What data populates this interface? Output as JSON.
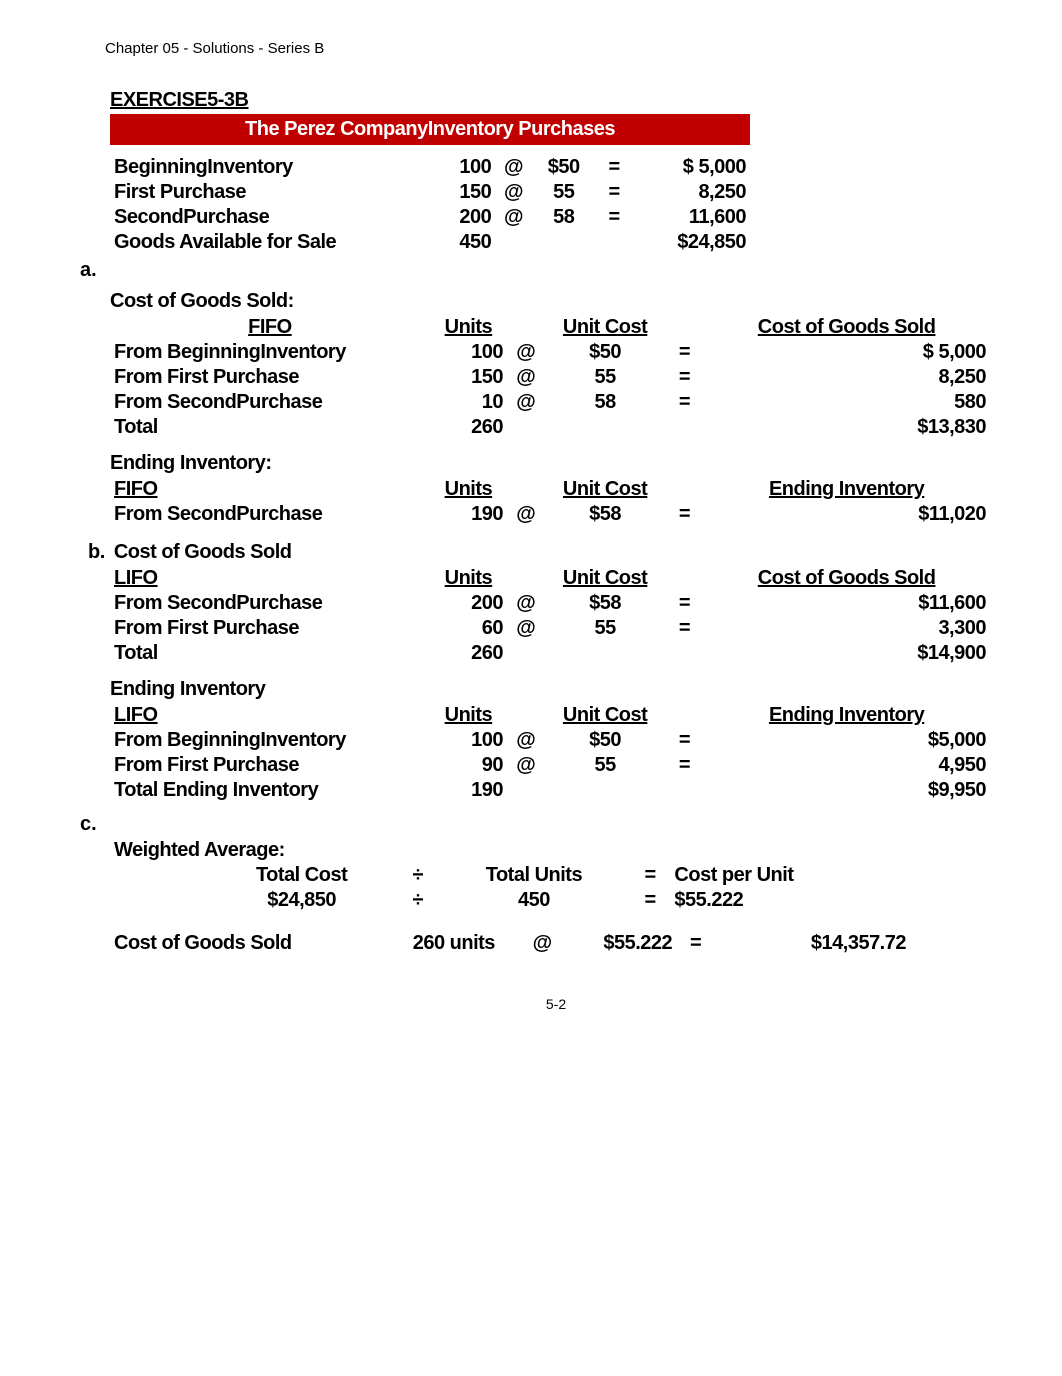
{
  "page_header": "Chapter 05 - Solutions - Series B",
  "exercise_label": "EXERCISE5-3B",
  "banner_title": "The Perez CompanyInventory Purchases",
  "purchases": {
    "rows": [
      {
        "label": "BeginningInventory",
        "units": "100",
        "at": "@",
        "cost": "$50",
        "eq": "=",
        "ext": "$  5,000"
      },
      {
        "label": "First Purchase",
        "units": "150",
        "at": "@",
        "cost": "55",
        "eq": "=",
        "ext": "8,250"
      },
      {
        "label": "SecondPurchase",
        "units": "200",
        "at": "@",
        "cost": "58",
        "eq": "=",
        "ext": "11,600"
      },
      {
        "label": "Goods Available for Sale",
        "units": "450",
        "at": "",
        "cost": "",
        "eq": "",
        "ext": "$24,850"
      }
    ]
  },
  "a_marker": "a.",
  "cogs_label": "Cost of Goods Sold:",
  "fifo_cogs": {
    "header": {
      "c0": "FIFO",
      "c1": "Units",
      "c2": "Unit Cost",
      "c3": "Cost of Goods Sold"
    },
    "rows": [
      {
        "label": "From BeginningInventory",
        "units": "100",
        "at": "@",
        "cost": "$50",
        "eq": "=",
        "ext": "$ 5,000"
      },
      {
        "label": "From First Purchase",
        "units": "150",
        "at": "@",
        "cost": "55",
        "eq": "=",
        "ext": "8,250"
      },
      {
        "label": "From SecondPurchase",
        "units": "10",
        "at": "@",
        "cost": "58",
        "eq": "=",
        "ext": "580"
      },
      {
        "label": "Total",
        "units": "260",
        "at": "",
        "cost": "",
        "eq": "",
        "ext": "$13,830"
      }
    ]
  },
  "ending_inv_label": "Ending Inventory:",
  "fifo_end": {
    "header": {
      "c0": "FIFO",
      "c1": "Units",
      "c2": "Unit Cost",
      "c3": "Ending Inventory"
    },
    "rows": [
      {
        "label": "From SecondPurchase",
        "units": "190",
        "at": "@",
        "cost": "$58",
        "eq": "=",
        "ext": "$11,020"
      }
    ]
  },
  "b_prefix": "b.",
  "b_label": "Cost of Goods Sold",
  "lifo_cogs": {
    "header": {
      "c0": "LIFO",
      "c1": "Units",
      "c2": "Unit Cost",
      "c3": "Cost of Goods Sold"
    },
    "rows": [
      {
        "label": "From SecondPurchase",
        "units": "200",
        "at": "@",
        "cost": "$58",
        "eq": "=",
        "ext": "$11,600"
      },
      {
        "label": "From First Purchase",
        "units": "60",
        "at": "@",
        "cost": "55",
        "eq": "=",
        "ext": "3,300"
      },
      {
        "label": "Total",
        "units": "260",
        "at": "",
        "cost": "",
        "eq": "",
        "ext": "$14,900"
      }
    ]
  },
  "ending_inv2_label": "Ending Inventory",
  "lifo_end": {
    "header": {
      "c0": "LIFO",
      "c1": "Units",
      "c2": "Unit Cost",
      "c3": "Ending Inventory"
    },
    "rows": [
      {
        "label": "From BeginningInventory",
        "units": "100",
        "at": "@",
        "cost": "$50",
        "eq": "=",
        "ext": "$5,000"
      },
      {
        "label": "From First Purchase",
        "units": "90",
        "at": "@",
        "cost": "55",
        "eq": "=",
        "ext": "4,950"
      },
      {
        "label": "Total Ending Inventory",
        "units": "190",
        "at": "",
        "cost": "",
        "eq": "",
        "ext": "$9,950"
      }
    ]
  },
  "c_marker": "c.",
  "wavg": {
    "title": "Weighted Average:",
    "rows": [
      {
        "label": "Total Cost",
        "div": "÷",
        "mid": "Total Units",
        "eq": "=",
        "right": "Cost per Unit"
      },
      {
        "label": "$24,850",
        "div": "÷",
        "mid": "450",
        "eq": "=",
        "right": "$55.222"
      }
    ]
  },
  "final": {
    "label": "Cost of Goods Sold",
    "units": "260 units",
    "at": "@",
    "cost": "$55.222",
    "eq": "=",
    "ext": "$14,357.72"
  },
  "footer": "5-2"
}
